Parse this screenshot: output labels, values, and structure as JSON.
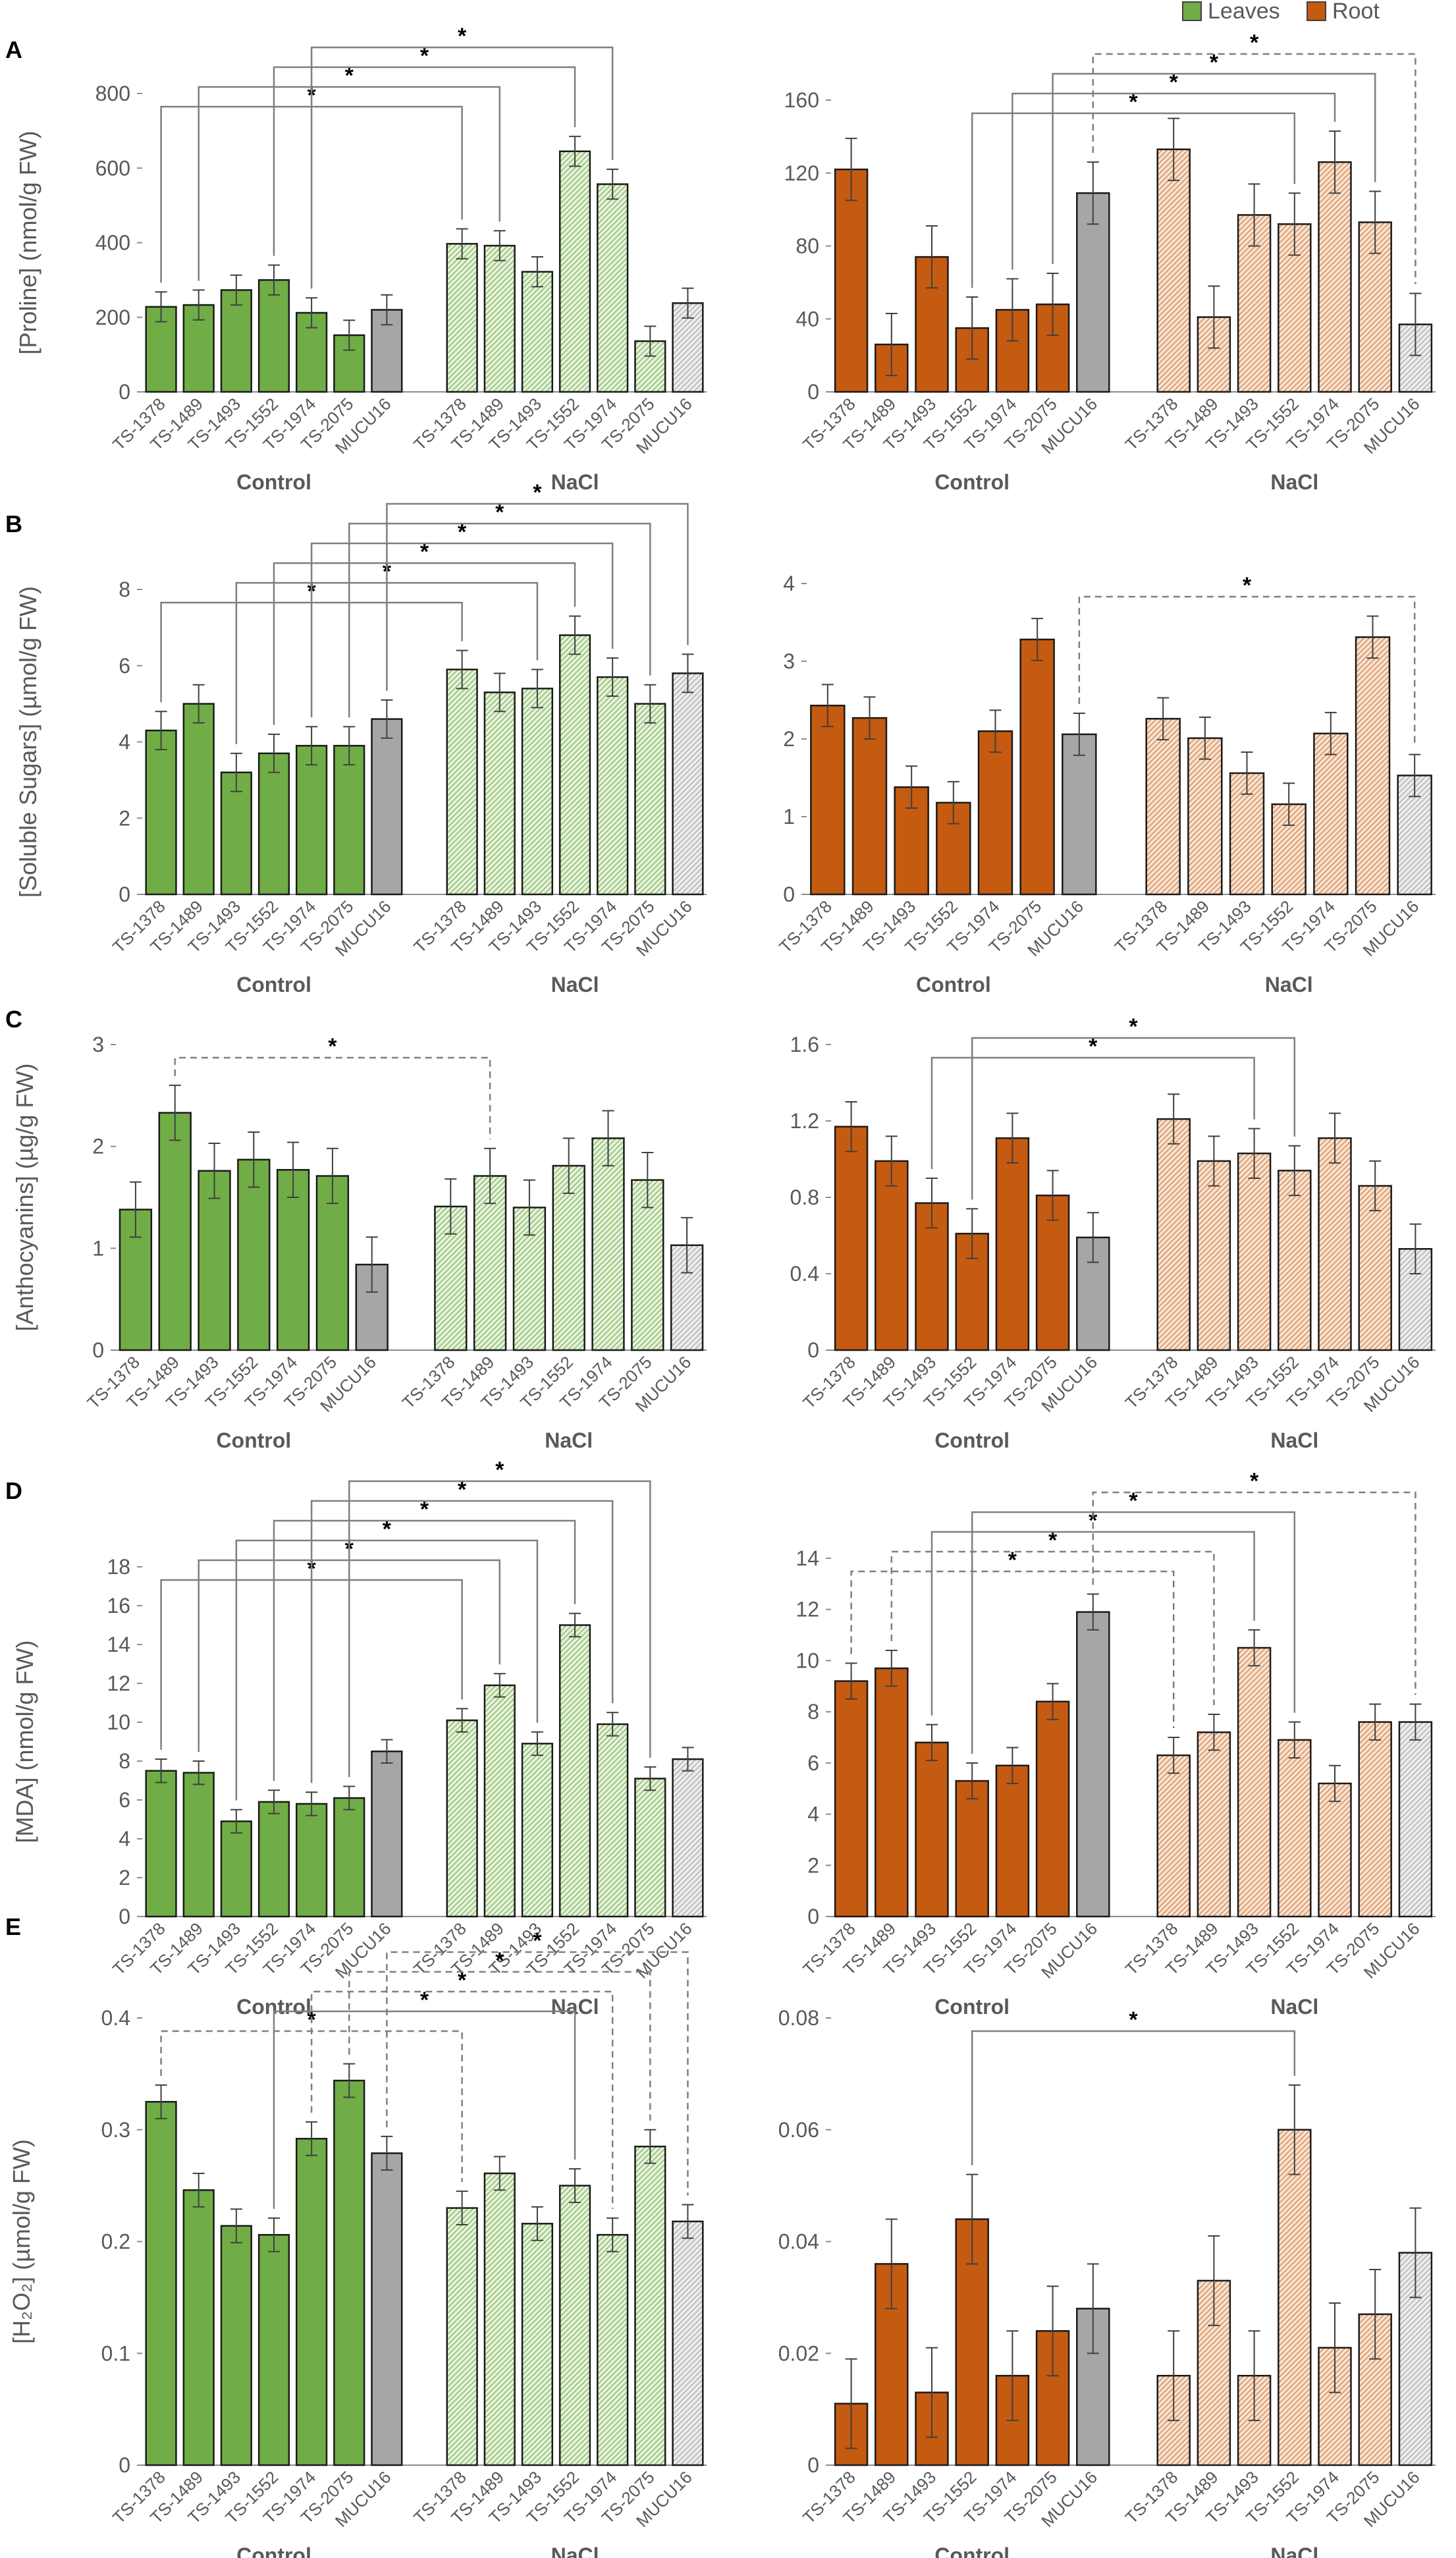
{
  "legend": {
    "items": [
      {
        "label": "Leaves",
        "color": "#70ad47"
      },
      {
        "label": "Root",
        "color": "#c55a11"
      }
    ]
  },
  "colors": {
    "leaves": "#70ad47",
    "leaves_nacl": "#d8ecc9",
    "root": "#c55a11",
    "root_nacl": "#f3d9c2",
    "mucu_control": "#a6a6a6",
    "mucu_nacl": "#d9d9d9",
    "frame": "#595959",
    "text": "#595959"
  },
  "chart_data": [
    {
      "id": "A-leaves",
      "panel": "A",
      "tissue": "leaves",
      "type": "bar",
      "ylabel": "[Proline] (nmol/g FW)",
      "ylim": [
        0,
        800
      ],
      "yticks": [
        0,
        200,
        400,
        600,
        800
      ],
      "groups": [
        "Control",
        "NaCl"
      ],
      "categories": [
        "TS-1378",
        "TS-1489",
        "TS-1493",
        "TS-1552",
        "TS-1974",
        "TS-2075",
        "MUCU16"
      ],
      "series": [
        {
          "name": "Control",
          "values": [
            228,
            233,
            273,
            300,
            212,
            152,
            220
          ],
          "errors": [
            40,
            40,
            40,
            40,
            40,
            40,
            40
          ]
        },
        {
          "name": "NaCl",
          "values": [
            397,
            392,
            322,
            645,
            557,
            136,
            238
          ],
          "errors": [
            40,
            40,
            40,
            40,
            40,
            40,
            40
          ]
        }
      ],
      "comparisons": [
        {
          "control": 0,
          "nacl": 0,
          "style": "solid",
          "label": "*"
        },
        {
          "control": 1,
          "nacl": 1,
          "style": "solid",
          "label": "*"
        },
        {
          "control": 3,
          "nacl": 3,
          "style": "solid",
          "label": "*"
        },
        {
          "control": 4,
          "nacl": 4,
          "style": "solid",
          "label": "*"
        }
      ]
    },
    {
      "id": "A-root",
      "panel": "A",
      "tissue": "root",
      "type": "bar",
      "ylabel": "",
      "ylim": [
        0,
        160
      ],
      "yticks": [
        0,
        40,
        80,
        120,
        160
      ],
      "groups": [
        "Control",
        "NaCl"
      ],
      "categories": [
        "TS-1378",
        "TS-1489",
        "TS-1493",
        "TS-1552",
        "TS-1974",
        "TS-2075",
        "MUCU16"
      ],
      "series": [
        {
          "name": "Control",
          "values": [
            122,
            26,
            74,
            35,
            45,
            48,
            109
          ],
          "errors": [
            17,
            17,
            17,
            17,
            17,
            17,
            17
          ]
        },
        {
          "name": "NaCl",
          "values": [
            133,
            41,
            97,
            92,
            126,
            93,
            37
          ],
          "errors": [
            17,
            17,
            17,
            17,
            17,
            17,
            17
          ]
        }
      ],
      "comparisons": [
        {
          "control": 3,
          "nacl": 3,
          "style": "solid",
          "label": "*"
        },
        {
          "control": 4,
          "nacl": 4,
          "style": "solid",
          "label": "*"
        },
        {
          "control": 5,
          "nacl": 5,
          "style": "solid",
          "label": "*"
        },
        {
          "control": 6,
          "nacl": 6,
          "style": "dashed",
          "label": "*"
        }
      ]
    },
    {
      "id": "B-leaves",
      "panel": "B",
      "tissue": "leaves",
      "type": "bar",
      "ylabel": "[Soluble Sugars] (µmol/g FW)",
      "ylim": [
        0,
        8
      ],
      "yticks": [
        0,
        2,
        4,
        6,
        8
      ],
      "groups": [
        "Control",
        "NaCl"
      ],
      "categories": [
        "TS-1378",
        "TS-1489",
        "TS-1493",
        "TS-1552",
        "TS-1974",
        "TS-2075",
        "MUCU16"
      ],
      "series": [
        {
          "name": "Control",
          "values": [
            4.3,
            5.0,
            3.2,
            3.7,
            3.9,
            3.9,
            4.6
          ],
          "errors": [
            0.5,
            0.5,
            0.5,
            0.5,
            0.5,
            0.5,
            0.5
          ]
        },
        {
          "name": "NaCl",
          "values": [
            5.9,
            5.3,
            5.4,
            6.8,
            5.7,
            5.0,
            5.8
          ],
          "errors": [
            0.5,
            0.5,
            0.5,
            0.5,
            0.5,
            0.5,
            0.5
          ]
        }
      ],
      "comparisons": [
        {
          "control": 0,
          "nacl": 0,
          "style": "solid",
          "label": "*"
        },
        {
          "control": 2,
          "nacl": 2,
          "style": "solid",
          "label": "*"
        },
        {
          "control": 3,
          "nacl": 3,
          "style": "solid",
          "label": "*"
        },
        {
          "control": 4,
          "nacl": 4,
          "style": "solid",
          "label": "*"
        },
        {
          "control": 5,
          "nacl": 5,
          "style": "solid",
          "label": "*"
        },
        {
          "control": 6,
          "nacl": 6,
          "style": "solid",
          "label": "*"
        }
      ]
    },
    {
      "id": "B-root",
      "panel": "B",
      "tissue": "root",
      "type": "bar",
      "ylabel": "",
      "ylim": [
        0,
        4
      ],
      "yticks": [
        0,
        1,
        2,
        3,
        4
      ],
      "groups": [
        "Control",
        "NaCl"
      ],
      "categories": [
        "TS-1378",
        "TS-1489",
        "TS-1493",
        "TS-1552",
        "TS-1974",
        "TS-2075",
        "MUCU16"
      ],
      "series": [
        {
          "name": "Control",
          "values": [
            2.43,
            2.27,
            1.38,
            1.18,
            2.1,
            3.28,
            2.06
          ],
          "errors": [
            0.27,
            0.27,
            0.27,
            0.27,
            0.27,
            0.27,
            0.27
          ]
        },
        {
          "name": "NaCl",
          "values": [
            2.26,
            2.01,
            1.56,
            1.16,
            2.07,
            3.31,
            1.53
          ],
          "errors": [
            0.27,
            0.27,
            0.27,
            0.27,
            0.27,
            0.27,
            0.27
          ]
        }
      ],
      "comparisons": [
        {
          "control": 6,
          "nacl": 6,
          "style": "dashed",
          "label": "*"
        }
      ]
    },
    {
      "id": "C-leaves",
      "panel": "C",
      "tissue": "leaves",
      "type": "bar",
      "ylabel": "[Anthocyanins] (µg/g FW)",
      "ylim": [
        0,
        3
      ],
      "yticks": [
        0,
        1,
        2,
        3
      ],
      "groups": [
        "Control",
        "NaCl"
      ],
      "categories": [
        "TS-1378",
        "TS-1489",
        "TS-1493",
        "TS-1552",
        "TS-1974",
        "TS-2075",
        "MUCU16"
      ],
      "series": [
        {
          "name": "Control",
          "values": [
            1.38,
            2.33,
            1.76,
            1.87,
            1.77,
            1.71,
            0.84
          ],
          "errors": [
            0.27,
            0.27,
            0.27,
            0.27,
            0.27,
            0.27,
            0.27
          ]
        },
        {
          "name": "NaCl",
          "values": [
            1.41,
            1.71,
            1.4,
            1.81,
            2.08,
            1.67,
            1.03
          ],
          "errors": [
            0.27,
            0.27,
            0.27,
            0.27,
            0.27,
            0.27,
            0.27
          ]
        }
      ],
      "comparisons": [
        {
          "control": 1,
          "nacl": 1,
          "style": "dashed",
          "label": "*"
        }
      ]
    },
    {
      "id": "C-root",
      "panel": "C",
      "tissue": "root",
      "type": "bar",
      "ylabel": "",
      "ylim": [
        0,
        1.6
      ],
      "yticks": [
        0,
        0.4,
        0.8,
        1.2,
        1.6
      ],
      "groups": [
        "Control",
        "NaCl"
      ],
      "categories": [
        "TS-1378",
        "TS-1489",
        "TS-1493",
        "TS-1552",
        "TS-1974",
        "TS-2075",
        "MUCU16"
      ],
      "series": [
        {
          "name": "Control",
          "values": [
            1.17,
            0.99,
            0.77,
            0.61,
            1.11,
            0.81,
            0.59
          ],
          "errors": [
            0.13,
            0.13,
            0.13,
            0.13,
            0.13,
            0.13,
            0.13
          ]
        },
        {
          "name": "NaCl",
          "values": [
            1.21,
            0.99,
            1.03,
            0.94,
            1.11,
            0.86,
            0.53
          ],
          "errors": [
            0.13,
            0.13,
            0.13,
            0.13,
            0.13,
            0.13,
            0.13
          ]
        }
      ],
      "comparisons": [
        {
          "control": 2,
          "nacl": 2,
          "style": "solid",
          "label": "*"
        },
        {
          "control": 3,
          "nacl": 3,
          "style": "solid",
          "label": "*"
        }
      ]
    },
    {
      "id": "D-leaves",
      "panel": "D",
      "tissue": "leaves",
      "type": "bar",
      "ylabel": "[MDA] (nmol/g FW)",
      "ylim": [
        0,
        18
      ],
      "yticks": [
        0,
        2,
        4,
        6,
        8,
        10,
        12,
        14,
        16,
        18
      ],
      "groups": [
        "Control",
        "NaCl"
      ],
      "categories": [
        "TS-1378",
        "TS-1489",
        "TS-1493",
        "TS-1552",
        "TS-1974",
        "TS-2075",
        "MUCU16"
      ],
      "series": [
        {
          "name": "Control",
          "values": [
            7.5,
            7.4,
            4.9,
            5.9,
            5.8,
            6.1,
            8.5
          ],
          "errors": [
            0.6,
            0.6,
            0.6,
            0.6,
            0.6,
            0.6,
            0.6
          ]
        },
        {
          "name": "NaCl",
          "values": [
            10.1,
            11.9,
            8.9,
            15.0,
            9.9,
            7.1,
            8.1
          ],
          "errors": [
            0.6,
            0.6,
            0.6,
            0.6,
            0.6,
            0.6,
            0.6
          ]
        }
      ],
      "comparisons": [
        {
          "control": 0,
          "nacl": 0,
          "style": "solid",
          "label": "*"
        },
        {
          "control": 1,
          "nacl": 1,
          "style": "solid",
          "label": "*"
        },
        {
          "control": 2,
          "nacl": 2,
          "style": "solid",
          "label": "*"
        },
        {
          "control": 3,
          "nacl": 3,
          "style": "solid",
          "label": "*"
        },
        {
          "control": 4,
          "nacl": 4,
          "style": "solid",
          "label": "*"
        },
        {
          "control": 5,
          "nacl": 5,
          "style": "solid",
          "label": "*"
        }
      ]
    },
    {
      "id": "D-root",
      "panel": "D",
      "tissue": "root",
      "type": "bar",
      "ylabel": "",
      "ylim": [
        0,
        14
      ],
      "yticks": [
        0,
        2,
        4,
        6,
        8,
        10,
        12,
        14
      ],
      "groups": [
        "Control",
        "NaCl"
      ],
      "categories": [
        "TS-1378",
        "TS-1489",
        "TS-1493",
        "TS-1552",
        "TS-1974",
        "TS-2075",
        "MUCU16"
      ],
      "series": [
        {
          "name": "Control",
          "values": [
            9.2,
            9.7,
            6.8,
            5.3,
            5.9,
            8.4,
            11.9
          ],
          "errors": [
            0.7,
            0.7,
            0.7,
            0.7,
            0.7,
            0.7,
            0.7
          ]
        },
        {
          "name": "NaCl",
          "values": [
            6.3,
            7.2,
            10.5,
            6.9,
            5.2,
            7.6,
            7.6
          ],
          "errors": [
            0.7,
            0.7,
            0.7,
            0.7,
            0.7,
            0.7,
            0.7
          ]
        }
      ],
      "comparisons": [
        {
          "control": 0,
          "nacl": 0,
          "style": "dashed",
          "label": "*"
        },
        {
          "control": 1,
          "nacl": 1,
          "style": "dashed",
          "label": "*"
        },
        {
          "control": 2,
          "nacl": 2,
          "style": "solid",
          "label": "*"
        },
        {
          "control": 3,
          "nacl": 3,
          "style": "solid",
          "label": "*"
        },
        {
          "control": 6,
          "nacl": 6,
          "style": "dashed",
          "label": "*"
        }
      ]
    },
    {
      "id": "E-leaves",
      "panel": "E",
      "tissue": "leaves",
      "type": "bar",
      "ylabel": "[H₂O₂] (µmol/g FW)",
      "ylim": [
        0,
        0.4
      ],
      "yticks": [
        0,
        0.1,
        0.2,
        0.3,
        0.4
      ],
      "groups": [
        "Control",
        "NaCl"
      ],
      "categories": [
        "TS-1378",
        "TS-1489",
        "TS-1493",
        "TS-1552",
        "TS-1974",
        "TS-2075",
        "MUCU16"
      ],
      "series": [
        {
          "name": "Control",
          "values": [
            0.325,
            0.246,
            0.214,
            0.206,
            0.292,
            0.344,
            0.279
          ],
          "errors": [
            0.015,
            0.015,
            0.015,
            0.015,
            0.015,
            0.015,
            0.015
          ]
        },
        {
          "name": "NaCl",
          "values": [
            0.23,
            0.261,
            0.216,
            0.25,
            0.206,
            0.285,
            0.218
          ],
          "errors": [
            0.015,
            0.015,
            0.015,
            0.015,
            0.015,
            0.015,
            0.015
          ]
        }
      ],
      "comparisons": [
        {
          "control": 0,
          "nacl": 0,
          "style": "dashed",
          "label": "*"
        },
        {
          "control": 3,
          "nacl": 3,
          "style": "solid",
          "label": "*"
        },
        {
          "control": 4,
          "nacl": 4,
          "style": "dashed",
          "label": "*"
        },
        {
          "control": 5,
          "nacl": 5,
          "style": "dashed",
          "label": "*"
        },
        {
          "control": 6,
          "nacl": 6,
          "style": "dashed",
          "label": "*"
        }
      ]
    },
    {
      "id": "E-root",
      "panel": "E",
      "tissue": "root",
      "type": "bar",
      "ylabel": "",
      "ylim": [
        0,
        0.08
      ],
      "yticks": [
        0,
        0.02,
        0.04,
        0.06,
        0.08
      ],
      "groups": [
        "Control",
        "NaCl"
      ],
      "categories": [
        "TS-1378",
        "TS-1489",
        "TS-1493",
        "TS-1552",
        "TS-1974",
        "TS-2075",
        "MUCU16"
      ],
      "series": [
        {
          "name": "Control",
          "values": [
            0.011,
            0.036,
            0.013,
            0.044,
            0.016,
            0.024,
            0.028
          ],
          "errors": [
            0.008,
            0.008,
            0.008,
            0.008,
            0.008,
            0.008,
            0.008
          ]
        },
        {
          "name": "NaCl",
          "values": [
            0.016,
            0.033,
            0.016,
            0.06,
            0.021,
            0.027,
            0.038
          ],
          "errors": [
            0.008,
            0.008,
            0.008,
            0.008,
            0.008,
            0.008,
            0.008
          ]
        }
      ],
      "comparisons": [
        {
          "control": 3,
          "nacl": 3,
          "style": "solid",
          "label": "*"
        }
      ]
    }
  ]
}
